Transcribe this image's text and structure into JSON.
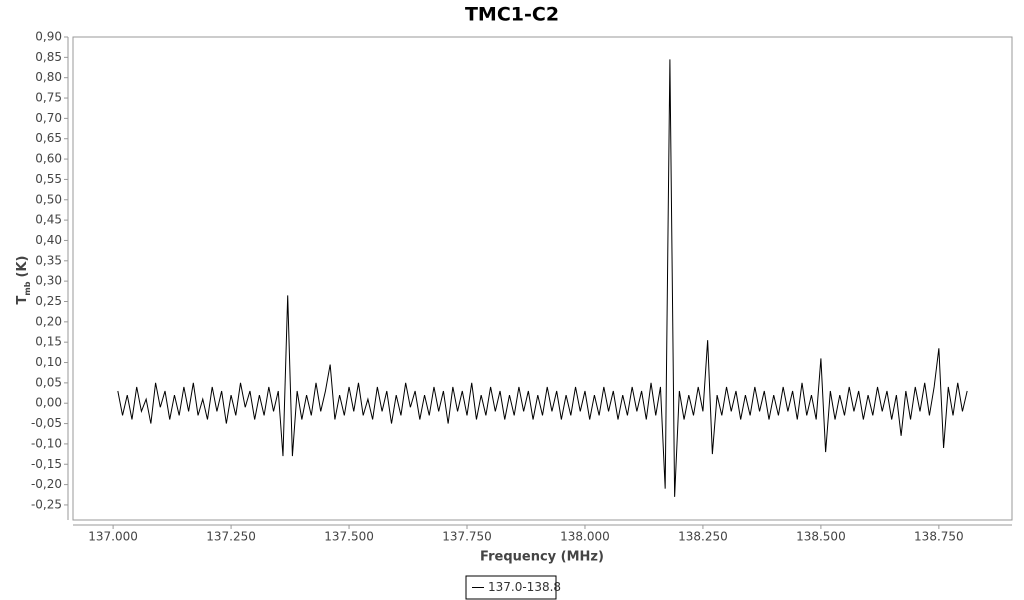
{
  "chart_data": {
    "type": "line",
    "title": "TMC1-C2",
    "xlabel": "Frequency (MHz)",
    "ylabel": "T",
    "ylabel_sub": "mb",
    "ylabel_unit": "(K)",
    "xlim": [
      136.915,
      138.905
    ],
    "ylim": [
      -0.287,
      0.9
    ],
    "xticks": [
      {
        "value": 137,
        "label": "137.000"
      },
      {
        "value": 137.25,
        "label": "137.250"
      },
      {
        "value": 137.5,
        "label": "137.500"
      },
      {
        "value": 137.75,
        "label": "137.750"
      },
      {
        "value": 138,
        "label": "138.000"
      },
      {
        "value": 138.25,
        "label": "138.250"
      },
      {
        "value": 138.5,
        "label": "138.500"
      },
      {
        "value": 138.75,
        "label": "138.750"
      }
    ],
    "yticks": [
      {
        "value": -0.25,
        "label": "-0,25"
      },
      {
        "value": -0.2,
        "label": "-0,20"
      },
      {
        "value": -0.15,
        "label": "-0,15"
      },
      {
        "value": -0.1,
        "label": "-0,10"
      },
      {
        "value": -0.05,
        "label": "-0,05"
      },
      {
        "value": 0,
        "label": "0,00"
      },
      {
        "value": 0.05,
        "label": "0,05"
      },
      {
        "value": 0.1,
        "label": "0,10"
      },
      {
        "value": 0.15,
        "label": "0,15"
      },
      {
        "value": 0.2,
        "label": "0,20"
      },
      {
        "value": 0.25,
        "label": "0,25"
      },
      {
        "value": 0.3,
        "label": "0,30"
      },
      {
        "value": 0.35,
        "label": "0,35"
      },
      {
        "value": 0.4,
        "label": "0,40"
      },
      {
        "value": 0.45,
        "label": "0,45"
      },
      {
        "value": 0.5,
        "label": "0,50"
      },
      {
        "value": 0.55,
        "label": "0,55"
      },
      {
        "value": 0.6,
        "label": "0,60"
      },
      {
        "value": 0.65,
        "label": "0,65"
      },
      {
        "value": 0.7,
        "label": "0,70"
      },
      {
        "value": 0.75,
        "label": "0,75"
      },
      {
        "value": 0.8,
        "label": "0,80"
      },
      {
        "value": 0.85,
        "label": "0,85"
      },
      {
        "value": 0.9,
        "label": "0,90"
      }
    ],
    "series": [
      {
        "name": "137.0-138.8",
        "color": "#000000",
        "x": [
          137.01,
          137.02,
          137.03,
          137.04,
          137.05,
          137.06,
          137.07,
          137.08,
          137.09,
          137.1,
          137.11,
          137.12,
          137.13,
          137.14,
          137.15,
          137.16,
          137.17,
          137.18,
          137.19,
          137.2,
          137.21,
          137.22,
          137.23,
          137.24,
          137.25,
          137.26,
          137.27,
          137.28,
          137.29,
          137.3,
          137.31,
          137.32,
          137.33,
          137.34,
          137.35,
          137.36,
          137.37,
          137.38,
          137.39,
          137.4,
          137.41,
          137.42,
          137.43,
          137.44,
          137.45,
          137.46,
          137.47,
          137.48,
          137.49,
          137.5,
          137.51,
          137.52,
          137.53,
          137.54,
          137.55,
          137.56,
          137.57,
          137.58,
          137.59,
          137.6,
          137.61,
          137.62,
          137.63,
          137.64,
          137.65,
          137.66,
          137.67,
          137.68,
          137.69,
          137.7,
          137.71,
          137.72,
          137.73,
          137.74,
          137.75,
          137.76,
          137.77,
          137.78,
          137.79,
          137.8,
          137.81,
          137.82,
          137.83,
          137.84,
          137.85,
          137.86,
          137.87,
          137.88,
          137.89,
          137.9,
          137.91,
          137.92,
          137.93,
          137.94,
          137.95,
          137.96,
          137.97,
          137.98,
          137.99,
          138.0,
          138.01,
          138.02,
          138.03,
          138.04,
          138.05,
          138.06,
          138.07,
          138.08,
          138.09,
          138.1,
          138.11,
          138.12,
          138.13,
          138.14,
          138.15,
          138.16,
          138.17,
          138.18,
          138.19,
          138.2,
          138.21,
          138.22,
          138.23,
          138.24,
          138.25,
          138.26,
          138.27,
          138.28,
          138.29,
          138.3,
          138.31,
          138.32,
          138.33,
          138.34,
          138.35,
          138.36,
          138.37,
          138.38,
          138.39,
          138.4,
          138.41,
          138.42,
          138.43,
          138.44,
          138.45,
          138.46,
          138.47,
          138.48,
          138.49,
          138.5,
          138.51,
          138.52,
          138.53,
          138.54,
          138.55,
          138.56,
          138.57,
          138.58,
          138.59,
          138.6,
          138.61,
          138.62,
          138.63,
          138.64,
          138.65,
          138.66,
          138.67,
          138.68,
          138.69,
          138.7,
          138.71,
          138.72,
          138.73,
          138.74,
          138.75,
          138.76,
          138.77,
          138.78,
          138.79,
          138.8,
          138.81
        ],
        "values": [
          0.03,
          -0.03,
          0.02,
          -0.04,
          0.04,
          -0.02,
          0.01,
          -0.05,
          0.05,
          -0.01,
          0.03,
          -0.04,
          0.02,
          -0.03,
          0.04,
          -0.02,
          0.05,
          -0.03,
          0.01,
          -0.04,
          0.04,
          -0.02,
          0.03,
          -0.05,
          0.02,
          -0.03,
          0.05,
          -0.01,
          0.03,
          -0.04,
          0.02,
          -0.03,
          0.04,
          -0.02,
          0.03,
          -0.13,
          0.265,
          -0.13,
          0.03,
          -0.04,
          0.02,
          -0.03,
          0.05,
          -0.02,
          0.03,
          0.095,
          -0.04,
          0.02,
          -0.03,
          0.04,
          -0.02,
          0.05,
          -0.03,
          0.01,
          -0.04,
          0.04,
          -0.02,
          0.03,
          -0.05,
          0.02,
          -0.03,
          0.05,
          -0.01,
          0.03,
          -0.04,
          0.02,
          -0.03,
          0.04,
          -0.02,
          0.03,
          -0.05,
          0.04,
          -0.02,
          0.03,
          -0.03,
          0.05,
          -0.04,
          0.02,
          -0.03,
          0.04,
          -0.02,
          0.03,
          -0.04,
          0.02,
          -0.03,
          0.04,
          -0.02,
          0.03,
          -0.04,
          0.02,
          -0.03,
          0.04,
          -0.02,
          0.03,
          -0.04,
          0.02,
          -0.03,
          0.04,
          -0.02,
          0.03,
          -0.04,
          0.02,
          -0.03,
          0.04,
          -0.02,
          0.03,
          -0.04,
          0.02,
          -0.03,
          0.04,
          -0.02,
          0.03,
          -0.04,
          0.05,
          -0.03,
          0.04,
          -0.21,
          0.845,
          -0.23,
          0.03,
          -0.04,
          0.02,
          -0.03,
          0.04,
          -0.02,
          0.155,
          -0.125,
          0.02,
          -0.03,
          0.04,
          -0.02,
          0.03,
          -0.04,
          0.02,
          -0.03,
          0.04,
          -0.02,
          0.03,
          -0.04,
          0.02,
          -0.03,
          0.04,
          -0.02,
          0.03,
          -0.04,
          0.05,
          -0.03,
          0.02,
          -0.04,
          0.11,
          -0.12,
          0.03,
          -0.04,
          0.02,
          -0.03,
          0.04,
          -0.02,
          0.03,
          -0.04,
          0.02,
          -0.03,
          0.04,
          -0.02,
          0.03,
          -0.04,
          0.02,
          -0.08,
          0.03,
          -0.04,
          0.04,
          -0.02,
          0.05,
          -0.03,
          0.04,
          0.135,
          -0.11,
          0.04,
          -0.03,
          0.05,
          -0.02,
          0.03
        ]
      }
    ]
  }
}
